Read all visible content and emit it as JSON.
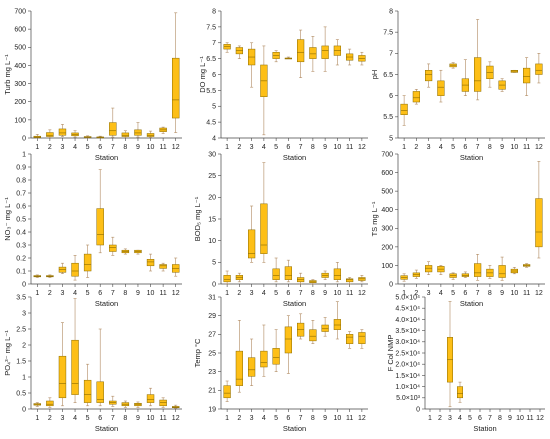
{
  "chart_data": [
    {
      "type": "box",
      "ylabel": "Turb  mg L⁻¹",
      "xlabel": "Station",
      "categories": [
        "1",
        "2",
        "3",
        "4",
        "5",
        "6",
        "7",
        "8",
        "9",
        "10",
        "11",
        "12"
      ],
      "yticks": [
        "0",
        "100",
        "200",
        "300",
        "400",
        "500",
        "600",
        "700"
      ],
      "ylim": [
        0,
        700
      ],
      "boxes": [
        {
          "min": 0,
          "q1": 2,
          "median": 5,
          "q3": 10,
          "max": 20
        },
        {
          "min": 2,
          "q1": 8,
          "median": 15,
          "q3": 30,
          "max": 45
        },
        {
          "min": 8,
          "q1": 15,
          "median": 28,
          "q3": 50,
          "max": 75
        },
        {
          "min": 5,
          "q1": 12,
          "median": 20,
          "q3": 28,
          "max": 40
        },
        {
          "min": 0,
          "q1": 3,
          "median": 5,
          "q3": 8,
          "max": 12
        },
        {
          "min": 0,
          "q1": 2,
          "median": 4,
          "q3": 6,
          "max": 10
        },
        {
          "min": 5,
          "q1": 15,
          "median": 40,
          "q3": 85,
          "max": 165
        },
        {
          "min": 2,
          "q1": 8,
          "median": 15,
          "q3": 28,
          "max": 40
        },
        {
          "min": 5,
          "q1": 15,
          "median": 28,
          "q3": 45,
          "max": 85
        },
        {
          "min": 3,
          "q1": 8,
          "median": 15,
          "q3": 25,
          "max": 38
        },
        {
          "min": 25,
          "q1": 35,
          "median": 45,
          "q3": 55,
          "max": 60
        },
        {
          "min": 30,
          "q1": 110,
          "median": 210,
          "q3": 440,
          "max": 690
        }
      ]
    },
    {
      "type": "box",
      "ylabel": "DO  mg L⁻¹",
      "xlabel": "Station",
      "categories": [
        "1",
        "2",
        "3",
        "4",
        "5",
        "6",
        "7",
        "8",
        "9",
        "10",
        "11",
        "12"
      ],
      "yticks": [
        "4",
        "4.5",
        "5",
        "5.5",
        "6",
        "6.5",
        "7",
        "7.5",
        "8"
      ],
      "ylim": [
        4,
        8
      ],
      "boxes": [
        {
          "min": 6.7,
          "q1": 6.8,
          "median": 6.88,
          "q3": 6.95,
          "max": 7.0
        },
        {
          "min": 6.5,
          "q1": 6.65,
          "median": 6.75,
          "q3": 6.85,
          "max": 6.9
        },
        {
          "min": 5.6,
          "q1": 6.3,
          "median": 6.55,
          "q3": 6.8,
          "max": 7.0
        },
        {
          "min": 4.1,
          "q1": 5.3,
          "median": 5.8,
          "q3": 6.3,
          "max": 6.9
        },
        {
          "min": 6.4,
          "q1": 6.5,
          "median": 6.6,
          "q3": 6.7,
          "max": 6.75
        },
        {
          "min": 6.5,
          "q1": 6.5,
          "median": 6.5,
          "q3": 6.52,
          "max": 6.55
        },
        {
          "min": 5.9,
          "q1": 6.4,
          "median": 6.7,
          "q3": 7.1,
          "max": 7.4
        },
        {
          "min": 6.1,
          "q1": 6.5,
          "median": 6.65,
          "q3": 6.85,
          "max": 7.2
        },
        {
          "min": 6.1,
          "q1": 6.5,
          "median": 6.75,
          "q3": 6.9,
          "max": 7.5
        },
        {
          "min": 6.3,
          "q1": 6.6,
          "median": 6.75,
          "q3": 6.9,
          "max": 7.1
        },
        {
          "min": 6.3,
          "q1": 6.45,
          "median": 6.55,
          "q3": 6.65,
          "max": 6.8
        },
        {
          "min": 6.3,
          "q1": 6.42,
          "median": 6.5,
          "q3": 6.6,
          "max": 6.7
        }
      ]
    },
    {
      "type": "box",
      "ylabel": "pH",
      "xlabel": "Station",
      "categories": [
        "1",
        "2",
        "3",
        "4",
        "5",
        "6",
        "7",
        "8",
        "9",
        "10",
        "11",
        "12"
      ],
      "yticks": [
        "5",
        "5.5",
        "6",
        "6.5",
        "7",
        "7.5",
        "8"
      ],
      "ylim": [
        5,
        8
      ],
      "boxes": [
        {
          "min": 5.3,
          "q1": 5.55,
          "median": 5.65,
          "q3": 5.8,
          "max": 6.0
        },
        {
          "min": 5.8,
          "q1": 5.85,
          "median": 5.95,
          "q3": 6.1,
          "max": 6.15
        },
        {
          "min": 6.2,
          "q1": 6.35,
          "median": 6.5,
          "q3": 6.6,
          "max": 6.75
        },
        {
          "min": 5.85,
          "q1": 6.0,
          "median": 6.2,
          "q3": 6.35,
          "max": 6.6
        },
        {
          "min": 6.65,
          "q1": 6.68,
          "median": 6.72,
          "q3": 6.75,
          "max": 6.78
        },
        {
          "min": 6.0,
          "q1": 6.1,
          "median": 6.25,
          "q3": 6.4,
          "max": 6.85
        },
        {
          "min": 5.9,
          "q1": 6.1,
          "median": 6.35,
          "q3": 6.9,
          "max": 7.8
        },
        {
          "min": 6.2,
          "q1": 6.4,
          "median": 6.55,
          "q3": 6.7,
          "max": 6.8
        },
        {
          "min": 6.1,
          "q1": 6.15,
          "median": 6.25,
          "q3": 6.35,
          "max": 6.4
        },
        {
          "min": 6.55,
          "q1": 6.55,
          "median": 6.58,
          "q3": 6.6,
          "max": 6.6
        },
        {
          "min": 6.0,
          "q1": 6.3,
          "median": 6.45,
          "q3": 6.65,
          "max": 6.9
        },
        {
          "min": 6.3,
          "q1": 6.5,
          "median": 6.6,
          "q3": 6.75,
          "max": 7.0
        }
      ]
    },
    {
      "type": "box",
      "ylabel": "NO₃⁻  mg L⁻¹",
      "xlabel": "Station",
      "categories": [
        "1",
        "2",
        "3",
        "4",
        "5",
        "6",
        "7",
        "8",
        "9",
        "10",
        "11",
        "12"
      ],
      "yticks": [
        "0",
        "0.1",
        "0.2",
        "0.3",
        "0.4",
        "0.5",
        "0.6",
        "0.7",
        "0.8",
        "0.9",
        "1"
      ],
      "ylim": [
        0,
        1
      ],
      "boxes": [
        {
          "min": 0.05,
          "q1": 0.055,
          "median": 0.06,
          "q3": 0.065,
          "max": 0.07
        },
        {
          "min": 0.05,
          "q1": 0.055,
          "median": 0.06,
          "q3": 0.065,
          "max": 0.07
        },
        {
          "min": 0.08,
          "q1": 0.09,
          "median": 0.11,
          "q3": 0.13,
          "max": 0.16
        },
        {
          "min": 0.03,
          "q1": 0.06,
          "median": 0.1,
          "q3": 0.16,
          "max": 0.22
        },
        {
          "min": 0.05,
          "q1": 0.1,
          "median": 0.15,
          "q3": 0.23,
          "max": 0.3
        },
        {
          "min": 0.24,
          "q1": 0.3,
          "median": 0.38,
          "q3": 0.58,
          "max": 0.88
        },
        {
          "min": 0.22,
          "q1": 0.25,
          "median": 0.28,
          "q3": 0.3,
          "max": 0.36
        },
        {
          "min": 0.23,
          "q1": 0.24,
          "median": 0.25,
          "q3": 0.26,
          "max": 0.27
        },
        {
          "min": 0.23,
          "q1": 0.24,
          "median": 0.25,
          "q3": 0.26,
          "max": 0.26
        },
        {
          "min": 0.1,
          "q1": 0.14,
          "median": 0.17,
          "q3": 0.19,
          "max": 0.23
        },
        {
          "min": 0.1,
          "q1": 0.12,
          "median": 0.14,
          "q3": 0.15,
          "max": 0.16
        },
        {
          "min": 0.06,
          "q1": 0.09,
          "median": 0.12,
          "q3": 0.15,
          "max": 0.2
        }
      ]
    },
    {
      "type": "box",
      "ylabel": "BOD₅  mg L⁻¹",
      "xlabel": "Station",
      "categories": [
        "1",
        "2",
        "3",
        "4",
        "5",
        "6",
        "7",
        "8",
        "9",
        "10",
        "11",
        "12"
      ],
      "yticks": [
        "0",
        "5",
        "10",
        "15",
        "20",
        "25",
        "30"
      ],
      "ylim": [
        0,
        30
      ],
      "boxes": [
        {
          "min": 0,
          "q1": 0.5,
          "median": 1,
          "q3": 2,
          "max": 3
        },
        {
          "min": 0.5,
          "q1": 1,
          "median": 1.5,
          "q3": 2,
          "max": 2.5
        },
        {
          "min": 5,
          "q1": 6,
          "median": 7,
          "q3": 12.5,
          "max": 18
        },
        {
          "min": 5,
          "q1": 7,
          "median": 9,
          "q3": 18.5,
          "max": 28
        },
        {
          "min": 0.5,
          "q1": 1,
          "median": 2,
          "q3": 3.5,
          "max": 6
        },
        {
          "min": 0.5,
          "q1": 1,
          "median": 2,
          "q3": 4,
          "max": 5.5
        },
        {
          "min": 0,
          "q1": 0.5,
          "median": 1,
          "q3": 1.5,
          "max": 2.5
        },
        {
          "min": 0,
          "q1": 0.3,
          "median": 0.5,
          "q3": 0.8,
          "max": 1
        },
        {
          "min": 1,
          "q1": 1.5,
          "median": 2,
          "q3": 2.5,
          "max": 3
        },
        {
          "min": 0.5,
          "q1": 1,
          "median": 2,
          "q3": 3.5,
          "max": 5
        },
        {
          "min": 0,
          "q1": 0.5,
          "median": 1,
          "q3": 1.2,
          "max": 1.5
        },
        {
          "min": 0.5,
          "q1": 0.8,
          "median": 1.2,
          "q3": 1.5,
          "max": 2
        }
      ]
    },
    {
      "type": "box",
      "ylabel": "TS mg L⁻¹",
      "xlabel": "Station",
      "categories": [
        "1",
        "2",
        "3",
        "4",
        "5",
        "6",
        "7",
        "8",
        "9",
        "10",
        "11",
        "12"
      ],
      "yticks": [
        "0",
        "100",
        "200",
        "300",
        "400",
        "500",
        "600",
        "700"
      ],
      "ylim": [
        0,
        700
      ],
      "boxes": [
        {
          "min": 15,
          "q1": 25,
          "median": 35,
          "q3": 45,
          "max": 55
        },
        {
          "min": 30,
          "q1": 40,
          "median": 50,
          "q3": 60,
          "max": 75
        },
        {
          "min": 50,
          "q1": 65,
          "median": 85,
          "q3": 100,
          "max": 120
        },
        {
          "min": 50,
          "q1": 65,
          "median": 80,
          "q3": 95,
          "max": 100
        },
        {
          "min": 25,
          "q1": 35,
          "median": 45,
          "q3": 55,
          "max": 60
        },
        {
          "min": 35,
          "q1": 40,
          "median": 45,
          "q3": 55,
          "max": 65
        },
        {
          "min": 20,
          "q1": 40,
          "median": 60,
          "q3": 110,
          "max": 160
        },
        {
          "min": 30,
          "q1": 40,
          "median": 60,
          "q3": 80,
          "max": 100
        },
        {
          "min": 20,
          "q1": 35,
          "median": 55,
          "q3": 100,
          "max": 145
        },
        {
          "min": 55,
          "q1": 60,
          "median": 70,
          "q3": 80,
          "max": 90
        },
        {
          "min": 90,
          "q1": 95,
          "median": 100,
          "q3": 105,
          "max": 110
        },
        {
          "min": 140,
          "q1": 200,
          "median": 280,
          "q3": 460,
          "max": 660
        }
      ]
    },
    {
      "type": "box",
      "ylabel": "PO₄³⁻  mg L⁻¹",
      "xlabel": "Station",
      "categories": [
        "1",
        "2",
        "3",
        "4",
        "5",
        "6",
        "7",
        "8",
        "9",
        "10",
        "11",
        "12"
      ],
      "yticks": [
        "0",
        "0.5",
        "1",
        "1.5",
        "2",
        "2.5",
        "3",
        "3.5"
      ],
      "ylim": [
        0,
        3.5
      ],
      "boxes": [
        {
          "min": 0.08,
          "q1": 0.12,
          "median": 0.15,
          "q3": 0.17,
          "max": 0.2
        },
        {
          "min": 0.05,
          "q1": 0.1,
          "median": 0.15,
          "q3": 0.25,
          "max": 0.35
        },
        {
          "min": 0.1,
          "q1": 0.35,
          "median": 0.8,
          "q3": 1.65,
          "max": 2.7
        },
        {
          "min": 0.2,
          "q1": 0.45,
          "median": 0.8,
          "q3": 2.15,
          "max": 3.45
        },
        {
          "min": 0.1,
          "q1": 0.2,
          "median": 0.45,
          "q3": 0.9,
          "max": 1.4
        },
        {
          "min": 0.1,
          "q1": 0.2,
          "median": 0.3,
          "q3": 0.85,
          "max": 2.5
        },
        {
          "min": 0.08,
          "q1": 0.15,
          "median": 0.2,
          "q3": 0.25,
          "max": 0.4
        },
        {
          "min": 0.05,
          "q1": 0.1,
          "median": 0.15,
          "q3": 0.2,
          "max": 0.25
        },
        {
          "min": 0.05,
          "q1": 0.1,
          "median": 0.15,
          "q3": 0.18,
          "max": 0.22
        },
        {
          "min": 0.1,
          "q1": 0.2,
          "median": 0.3,
          "q3": 0.45,
          "max": 0.65
        },
        {
          "min": 0.05,
          "q1": 0.1,
          "median": 0.2,
          "q3": 0.28,
          "max": 0.35
        },
        {
          "min": 0.02,
          "q1": 0.04,
          "median": 0.06,
          "q3": 0.08,
          "max": 0.12
        }
      ]
    },
    {
      "type": "box",
      "ylabel": "Temp  °C",
      "xlabel": "Station",
      "categories": [
        "1",
        "2",
        "3",
        "4",
        "5",
        "6",
        "7",
        "8",
        "9",
        "10",
        "11",
        "12"
      ],
      "yticks": [
        "19",
        "21",
        "23",
        "25",
        "27",
        "29",
        "31"
      ],
      "ylim": [
        19,
        31
      ],
      "boxes": [
        {
          "min": 19.8,
          "q1": 20.2,
          "median": 20.7,
          "q3": 21.5,
          "max": 22.0
        },
        {
          "min": 20.8,
          "q1": 21.5,
          "median": 22.2,
          "q3": 25.2,
          "max": 28.5
        },
        {
          "min": 21.5,
          "q1": 22.5,
          "median": 23.2,
          "q3": 24.5,
          "max": 26.5
        },
        {
          "min": 22.5,
          "q1": 23.5,
          "median": 24.0,
          "q3": 25.2,
          "max": 28.0
        },
        {
          "min": 23.0,
          "q1": 23.8,
          "median": 24.5,
          "q3": 25.5,
          "max": 27.5
        },
        {
          "min": 22.8,
          "q1": 25.0,
          "median": 26.5,
          "q3": 27.8,
          "max": 29.0
        },
        {
          "min": 26.5,
          "q1": 26.8,
          "median": 27.5,
          "q3": 28.2,
          "max": 29.2
        },
        {
          "min": 26.0,
          "q1": 26.3,
          "median": 26.8,
          "q3": 27.5,
          "max": 28.5
        },
        {
          "min": 26.8,
          "q1": 27.3,
          "median": 27.6,
          "q3": 28.0,
          "max": 28.8
        },
        {
          "min": 26.5,
          "q1": 27.5,
          "median": 28.0,
          "q3": 28.6,
          "max": 30.5
        },
        {
          "min": 25.5,
          "q1": 26.0,
          "median": 26.7,
          "q3": 27.0,
          "max": 27.3
        },
        {
          "min": 25.5,
          "q1": 26.0,
          "median": 26.8,
          "q3": 27.2,
          "max": 27.5
        }
      ]
    },
    {
      "type": "box",
      "ylabel": "F Col   NMP",
      "xlabel": "Station",
      "categories": [
        "1",
        "2",
        "3",
        "4",
        "5",
        "6",
        "7",
        "8",
        "9",
        "10",
        "11",
        "12"
      ],
      "yticks": [
        "0",
        "5.0×10³",
        "1.0×10⁴",
        "1.5×10⁴",
        "2.0×10⁴",
        "2.5×10⁴",
        "3.0×10⁴",
        "3.5×10⁴",
        "4.0×10⁴",
        "4.5×10⁴",
        "5.0×10⁴"
      ],
      "ylim": [
        0,
        50000
      ],
      "boxes": [
        null,
        null,
        {
          "min": 1000,
          "q1": 12000,
          "median": 22000,
          "q3": 32000,
          "max": 48000
        },
        {
          "min": 3000,
          "q1": 5000,
          "median": 7000,
          "q3": 10000,
          "max": 12000
        },
        null,
        null,
        null,
        null,
        null,
        null,
        null,
        null
      ]
    }
  ]
}
